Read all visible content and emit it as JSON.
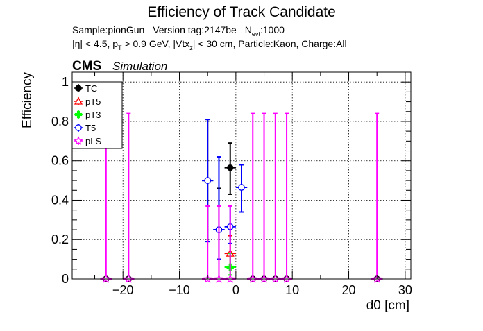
{
  "header": {
    "title": "Efficiency of Track Candidate",
    "line1_sample": "Sample:pionGun",
    "line1_version": "Version tag:2147be",
    "line1_nevt_N": "N",
    "line1_nevt_sub": "evt",
    "line1_nevt_val": ":1000",
    "line2_a": "|η| < 4.5, p",
    "line2_a_sub": "T",
    "line2_b": " > 0.9 GeV, |Vtx",
    "line2_b_sub": "z",
    "line2_c": "| < 30 cm, Particle:Kaon, Charge:All",
    "cms": "CMS",
    "simulation": "Simulation"
  },
  "chart_data": {
    "type": "scatter",
    "xlabel": "d0 [cm]",
    "ylabel": "Efficiency",
    "xlim": [
      -29,
      31
    ],
    "ylim": [
      0,
      1.05
    ],
    "grid": true,
    "legend_position": "top-left",
    "x_ticks": [
      -20,
      -10,
      0,
      10,
      20,
      30
    ],
    "x_tick_labels": [
      "−20",
      "−10",
      "0",
      "10",
      "20",
      "30"
    ],
    "y_ticks": [
      0,
      0.2,
      0.4,
      0.6,
      0.8,
      1
    ],
    "y_tick_labels": [
      "0",
      "0.2",
      "0.4",
      "0.6",
      "0.8",
      "1"
    ],
    "series": [
      {
        "name": "TC",
        "color": "#000000",
        "marker": "filled-circle",
        "points": [
          {
            "x": -23,
            "y": 0,
            "ylo": 0,
            "yhi": 0
          },
          {
            "x": -19,
            "y": 0,
            "ylo": 0,
            "yhi": 0
          },
          {
            "x": -5,
            "y": 0.5,
            "ylo": 0.19,
            "yhi": 0.81
          },
          {
            "x": -3,
            "y": 0.25,
            "ylo": 0.1,
            "yhi": 0.46
          },
          {
            "x": -1,
            "y": 0.565,
            "ylo": 0.43,
            "yhi": 0.69
          },
          {
            "x": 1,
            "y": 0.465,
            "ylo": 0.34,
            "yhi": 0.58
          },
          {
            "x": 3,
            "y": 0,
            "ylo": 0,
            "yhi": 0
          },
          {
            "x": 5,
            "y": 0,
            "ylo": 0,
            "yhi": 0
          },
          {
            "x": 7,
            "y": 0,
            "ylo": 0,
            "yhi": 0
          },
          {
            "x": 9,
            "y": 0,
            "ylo": 0,
            "yhi": 0
          },
          {
            "x": 25,
            "y": 0,
            "ylo": 0,
            "yhi": 0
          }
        ]
      },
      {
        "name": "pT5",
        "color": "#ff0000",
        "marker": "open-triangle",
        "points": [
          {
            "x": -1,
            "y": 0.13,
            "ylo": 0.06,
            "yhi": 0.22
          }
        ]
      },
      {
        "name": "pT3",
        "color": "#00ff00",
        "marker": "filled-cross",
        "points": [
          {
            "x": -1,
            "y": 0.06,
            "ylo": 0.02,
            "yhi": 0.13
          }
        ]
      },
      {
        "name": "T5",
        "color": "#0000ff",
        "marker": "open-circle",
        "points": [
          {
            "x": -5,
            "y": 0.5,
            "ylo": 0.19,
            "yhi": 0.81
          },
          {
            "x": -3,
            "y": 0.25,
            "ylo": 0.1,
            "yhi": 0.62
          },
          {
            "x": -1,
            "y": 0.265,
            "ylo": 0.18,
            "yhi": 0.37
          },
          {
            "x": 1,
            "y": 0.465,
            "ylo": 0.34,
            "yhi": 0.58
          }
        ]
      },
      {
        "name": "pLS",
        "color": "#ff00ff",
        "marker": "open-star",
        "points": [
          {
            "x": -23,
            "y": 0,
            "ylo": 0,
            "yhi": 0.84
          },
          {
            "x": -19,
            "y": 0,
            "ylo": 0,
            "yhi": 0.84
          },
          {
            "x": -5,
            "y": 0,
            "ylo": 0,
            "yhi": 0.37
          },
          {
            "x": -3,
            "y": 0,
            "ylo": 0,
            "yhi": 0.37
          },
          {
            "x": -1,
            "y": 0,
            "ylo": 0,
            "yhi": 0.37
          },
          {
            "x": 3,
            "y": 0,
            "ylo": 0,
            "yhi": 0.84
          },
          {
            "x": 5,
            "y": 0,
            "ylo": 0,
            "yhi": 0.84
          },
          {
            "x": 7,
            "y": 0,
            "ylo": 0,
            "yhi": 0.84
          },
          {
            "x": 9,
            "y": 0,
            "ylo": 0,
            "yhi": 0.84
          },
          {
            "x": 25,
            "y": 0,
            "ylo": 0,
            "yhi": 0.84
          }
        ]
      }
    ]
  }
}
